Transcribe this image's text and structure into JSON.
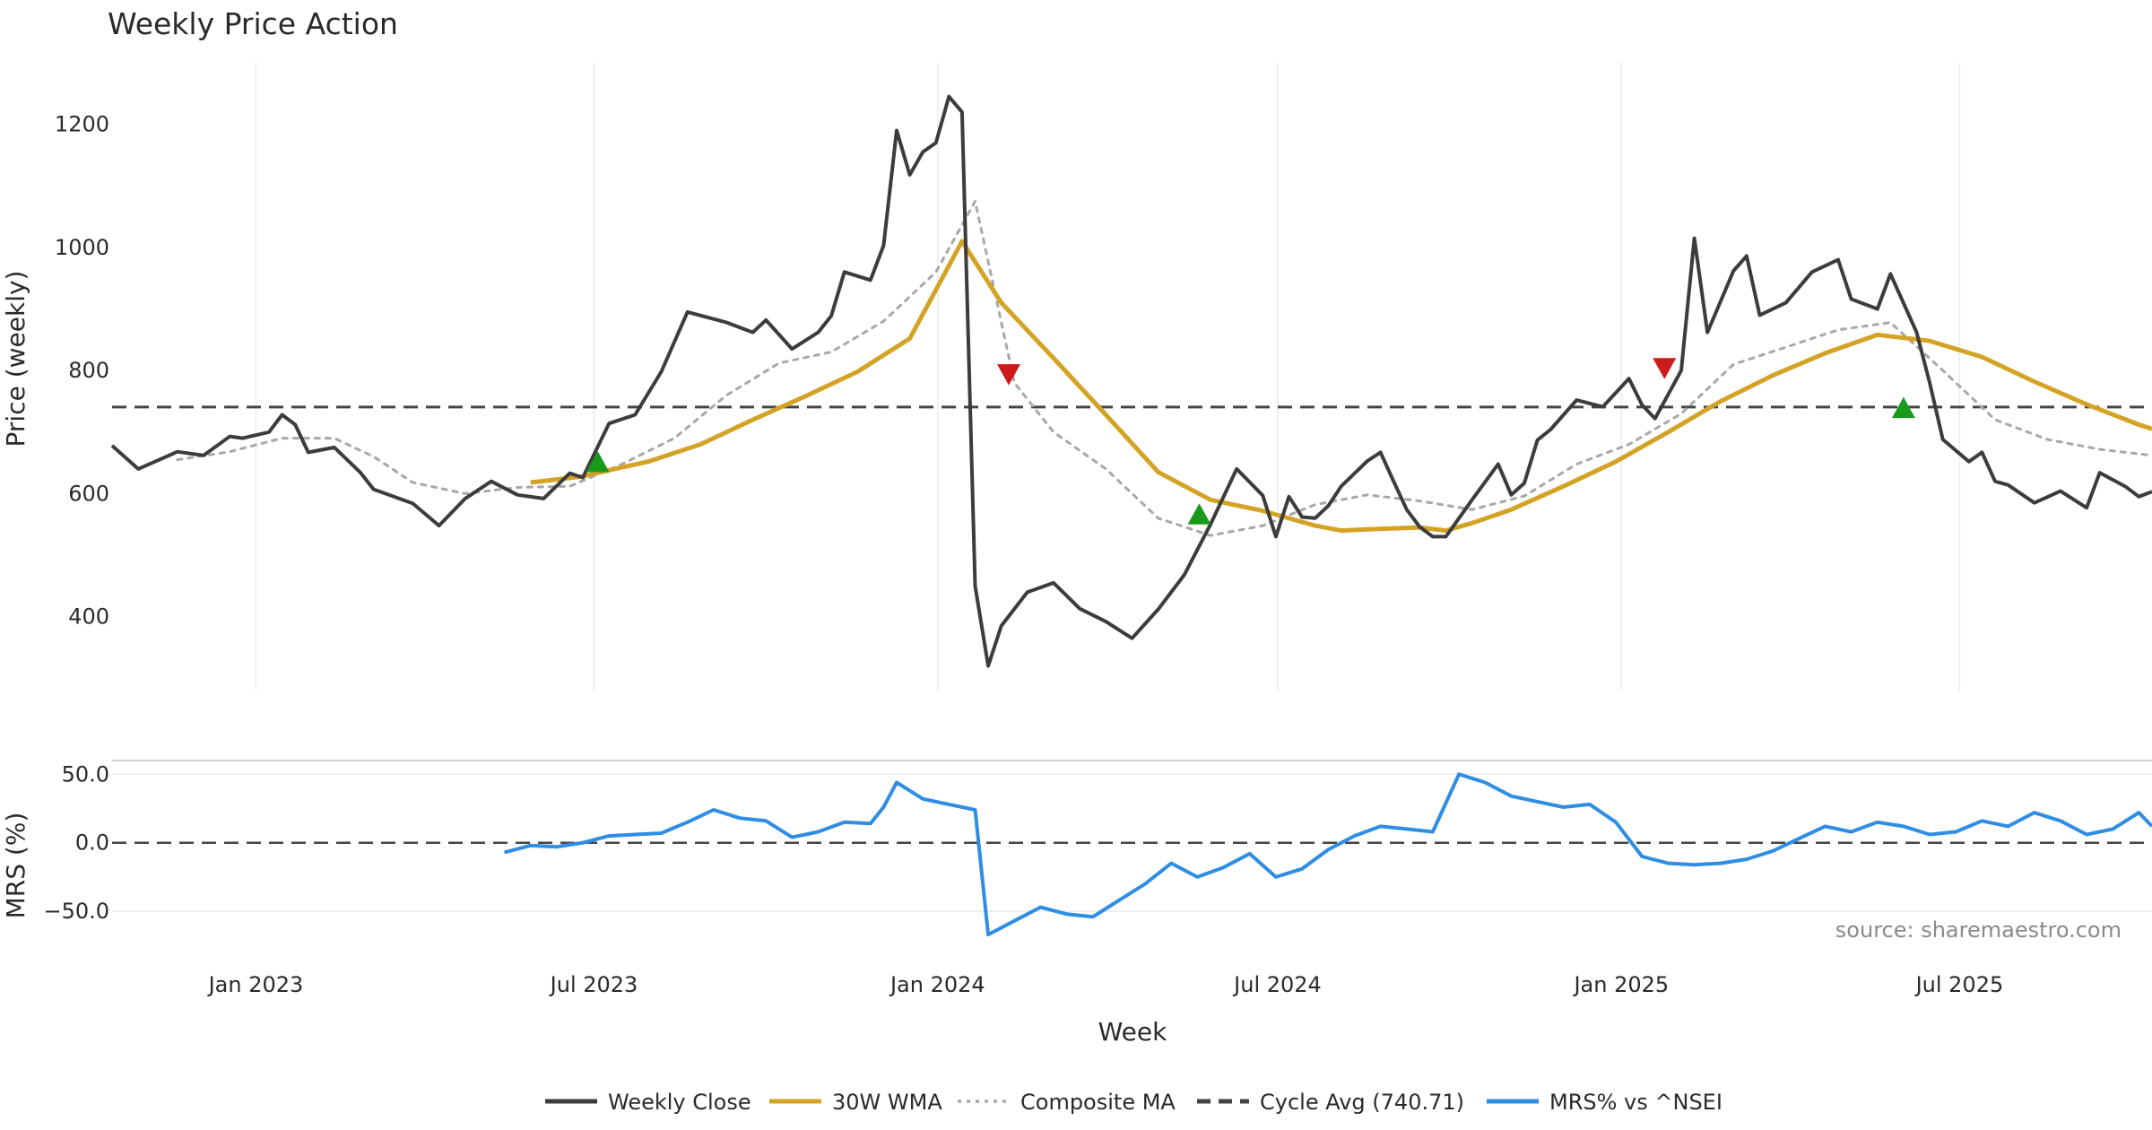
{
  "chart_data": {
    "type": "line",
    "title": "Weekly Price Action",
    "xlabel": "Week",
    "source": "source: sharemaestro.com",
    "x_ticks": [
      "Jan 2023",
      "Jul 2023",
      "Jan 2024",
      "Jul 2024",
      "Jan 2025",
      "Jul 2025"
    ],
    "x_tick_dates": [
      "2023-01-01",
      "2023-07-01",
      "2024-01-01",
      "2024-07-01",
      "2025-01-01",
      "2025-07-01"
    ],
    "x_range": [
      "2022-10-16",
      "2025-10-12"
    ],
    "grid": "vertical lines at x ticks, horizontal lines at MRS ticks",
    "legend_position": "bottom-center",
    "panels": [
      {
        "name": "price",
        "ylabel": "Price (weekly)",
        "y_ticks": [
          400,
          600,
          800,
          1000,
          1200
        ],
        "ylim": [
          280,
          1300
        ]
      },
      {
        "name": "mrs",
        "ylabel": "MRS (%)",
        "y_ticks": [
          "50.0",
          "0.0",
          "−50.0"
        ],
        "y_tick_values": [
          50,
          0,
          -50
        ],
        "ylim": [
          -80,
          60
        ]
      }
    ],
    "series": [
      {
        "name": "Weekly Close",
        "color": "#3c3c3c",
        "style": "solid",
        "panel": "price",
        "points": [
          [
            "2022-10-16",
            678
          ],
          [
            "2022-10-30",
            640
          ],
          [
            "2022-11-20",
            668
          ],
          [
            "2022-12-04",
            662
          ],
          [
            "2022-12-18",
            693
          ],
          [
            "2022-12-25",
            690
          ],
          [
            "2023-01-08",
            700
          ],
          [
            "2023-01-15",
            728
          ],
          [
            "2023-01-22",
            712
          ],
          [
            "2023-01-29",
            667
          ],
          [
            "2023-02-12",
            675
          ],
          [
            "2023-02-26",
            634
          ],
          [
            "2023-03-05",
            607
          ],
          [
            "2023-03-26",
            584
          ],
          [
            "2023-04-09",
            548
          ],
          [
            "2023-04-23",
            592
          ],
          [
            "2023-05-07",
            620
          ],
          [
            "2023-05-21",
            598
          ],
          [
            "2023-06-04",
            592
          ],
          [
            "2023-06-18",
            633
          ],
          [
            "2023-06-25",
            626
          ],
          [
            "2023-07-09",
            714
          ],
          [
            "2023-07-23",
            728
          ],
          [
            "2023-08-06",
            798
          ],
          [
            "2023-08-20",
            895
          ],
          [
            "2023-09-10",
            878
          ],
          [
            "2023-09-24",
            862
          ],
          [
            "2023-10-01",
            882
          ],
          [
            "2023-10-15",
            835
          ],
          [
            "2023-10-29",
            862
          ],
          [
            "2023-11-05",
            889
          ],
          [
            "2023-11-12",
            960
          ],
          [
            "2023-11-26",
            947
          ],
          [
            "2023-12-03",
            1003
          ],
          [
            "2023-12-10",
            1190
          ],
          [
            "2023-12-17",
            1118
          ],
          [
            "2023-12-24",
            1155
          ],
          [
            "2023-12-31",
            1170
          ],
          [
            "2024-01-07",
            1245
          ],
          [
            "2024-01-14",
            1220
          ],
          [
            "2024-01-21",
            450
          ],
          [
            "2024-01-28",
            320
          ],
          [
            "2024-02-04",
            385
          ],
          [
            "2024-02-18",
            440
          ],
          [
            "2024-03-03",
            455
          ],
          [
            "2024-03-17",
            413
          ],
          [
            "2024-03-31",
            392
          ],
          [
            "2024-04-14",
            365
          ],
          [
            "2024-04-28",
            412
          ],
          [
            "2024-05-12",
            468
          ],
          [
            "2024-05-26",
            550
          ],
          [
            "2024-06-09",
            640
          ],
          [
            "2024-06-23",
            597
          ],
          [
            "2024-06-30",
            530
          ],
          [
            "2024-07-07",
            595
          ],
          [
            "2024-07-14",
            562
          ],
          [
            "2024-07-21",
            560
          ],
          [
            "2024-07-28",
            580
          ],
          [
            "2024-08-04",
            612
          ],
          [
            "2024-08-18",
            653
          ],
          [
            "2024-08-25",
            667
          ],
          [
            "2024-09-01",
            620
          ],
          [
            "2024-09-08",
            574
          ],
          [
            "2024-09-15",
            546
          ],
          [
            "2024-09-22",
            530
          ],
          [
            "2024-09-29",
            530
          ],
          [
            "2024-10-13",
            590
          ],
          [
            "2024-10-27",
            648
          ],
          [
            "2024-11-03",
            598
          ],
          [
            "2024-11-10",
            617
          ],
          [
            "2024-11-17",
            687
          ],
          [
            "2024-11-24",
            704
          ],
          [
            "2024-12-08",
            752
          ],
          [
            "2024-12-22",
            741
          ],
          [
            "2025-01-05",
            787
          ],
          [
            "2025-01-12",
            744
          ],
          [
            "2025-01-19",
            722
          ],
          [
            "2025-02-02",
            800
          ],
          [
            "2025-02-09",
            1015
          ],
          [
            "2025-02-16",
            862
          ],
          [
            "2025-03-02",
            962
          ],
          [
            "2025-03-09",
            986
          ],
          [
            "2025-03-16",
            890
          ],
          [
            "2025-03-30",
            910
          ],
          [
            "2025-04-13",
            960
          ],
          [
            "2025-04-27",
            980
          ],
          [
            "2025-05-04",
            916
          ],
          [
            "2025-05-18",
            900
          ],
          [
            "2025-05-25",
            957
          ],
          [
            "2025-06-08",
            862
          ],
          [
            "2025-06-15",
            780
          ],
          [
            "2025-06-22",
            688
          ],
          [
            "2025-07-06",
            652
          ],
          [
            "2025-07-13",
            667
          ],
          [
            "2025-07-20",
            620
          ],
          [
            "2025-07-27",
            614
          ],
          [
            "2025-08-10",
            585
          ],
          [
            "2025-08-24",
            604
          ],
          [
            "2025-09-07",
            577
          ],
          [
            "2025-09-14",
            634
          ],
          [
            "2025-09-28",
            611
          ],
          [
            "2025-10-05",
            595
          ],
          [
            "2025-10-12",
            603
          ]
        ]
      },
      {
        "name": "30W WMA",
        "color": "#d4a325",
        "style": "solid",
        "panel": "price",
        "points": [
          [
            "2023-05-28",
            618
          ],
          [
            "2023-06-25",
            628
          ],
          [
            "2023-07-09",
            638
          ],
          [
            "2023-07-30",
            652
          ],
          [
            "2023-08-27",
            680
          ],
          [
            "2023-09-24",
            720
          ],
          [
            "2023-10-22",
            758
          ],
          [
            "2023-11-19",
            798
          ],
          [
            "2023-12-17",
            852
          ],
          [
            "2024-01-14",
            1010
          ],
          [
            "2024-02-04",
            910
          ],
          [
            "2024-03-03",
            820
          ],
          [
            "2024-03-31",
            728
          ],
          [
            "2024-04-28",
            635
          ],
          [
            "2024-05-26",
            590
          ],
          [
            "2024-06-23",
            572
          ],
          [
            "2024-07-21",
            548
          ],
          [
            "2024-08-04",
            540
          ],
          [
            "2024-08-18",
            542
          ],
          [
            "2024-09-15",
            545
          ],
          [
            "2024-09-29",
            540
          ],
          [
            "2024-10-13",
            552
          ],
          [
            "2024-11-03",
            574
          ],
          [
            "2024-12-01",
            612
          ],
          [
            "2024-12-29",
            652
          ],
          [
            "2025-01-26",
            700
          ],
          [
            "2025-02-23",
            750
          ],
          [
            "2025-03-23",
            792
          ],
          [
            "2025-04-20",
            828
          ],
          [
            "2025-05-18",
            858
          ],
          [
            "2025-06-15",
            848
          ],
          [
            "2025-07-13",
            822
          ],
          [
            "2025-08-10",
            782
          ],
          [
            "2025-09-07",
            745
          ],
          [
            "2025-10-05",
            712
          ],
          [
            "2025-10-12",
            705
          ]
        ]
      },
      {
        "name": "Composite MA",
        "color": "#a8a8a8",
        "style": "dotted",
        "panel": "price",
        "points": [
          [
            "2022-11-20",
            655
          ],
          [
            "2022-12-18",
            668
          ],
          [
            "2023-01-15",
            690
          ],
          [
            "2023-02-12",
            690
          ],
          [
            "2023-03-05",
            660
          ],
          [
            "2023-03-26",
            618
          ],
          [
            "2023-04-23",
            600
          ],
          [
            "2023-05-21",
            610
          ],
          [
            "2023-06-18",
            612
          ],
          [
            "2023-07-16",
            648
          ],
          [
            "2023-08-13",
            690
          ],
          [
            "2023-09-10",
            760
          ],
          [
            "2023-10-08",
            812
          ],
          [
            "2023-11-05",
            830
          ],
          [
            "2023-12-03",
            880
          ],
          [
            "2023-12-31",
            960
          ],
          [
            "2024-01-21",
            1075
          ],
          [
            "2024-02-11",
            780
          ],
          [
            "2024-03-03",
            700
          ],
          [
            "2024-03-31",
            640
          ],
          [
            "2024-04-28",
            560
          ],
          [
            "2024-05-26",
            532
          ],
          [
            "2024-06-23",
            548
          ],
          [
            "2024-07-21",
            582
          ],
          [
            "2024-08-18",
            598
          ],
          [
            "2024-09-15",
            588
          ],
          [
            "2024-10-13",
            574
          ],
          [
            "2024-11-10",
            596
          ],
          [
            "2024-12-08",
            648
          ],
          [
            "2025-01-05",
            680
          ],
          [
            "2025-02-02",
            730
          ],
          [
            "2025-03-02",
            810
          ],
          [
            "2025-03-30",
            838
          ],
          [
            "2025-04-27",
            866
          ],
          [
            "2025-05-25",
            878
          ],
          [
            "2025-06-22",
            800
          ],
          [
            "2025-07-20",
            720
          ],
          [
            "2025-08-17",
            688
          ],
          [
            "2025-09-14",
            672
          ],
          [
            "2025-10-12",
            662
          ]
        ]
      },
      {
        "name": "Cycle Avg (740.71)",
        "color": "#444444",
        "style": "dashed",
        "panel": "price",
        "value": 740.71
      },
      {
        "name": "MRS% vs ^NSEI",
        "color": "#2f8de4",
        "style": "solid",
        "panel": "mrs",
        "points": [
          [
            "2023-05-14",
            -7
          ],
          [
            "2023-05-28",
            -2
          ],
          [
            "2023-06-11",
            -3
          ],
          [
            "2023-06-25",
            0
          ],
          [
            "2023-07-09",
            5
          ],
          [
            "2023-07-23",
            6
          ],
          [
            "2023-08-06",
            7
          ],
          [
            "2023-08-20",
            15
          ],
          [
            "2023-09-03",
            24
          ],
          [
            "2023-09-17",
            18
          ],
          [
            "2023-10-01",
            16
          ],
          [
            "2023-10-15",
            4
          ],
          [
            "2023-10-29",
            8
          ],
          [
            "2023-11-12",
            15
          ],
          [
            "2023-11-26",
            14
          ],
          [
            "2023-12-03",
            26
          ],
          [
            "2023-12-10",
            44
          ],
          [
            "2023-12-24",
            32
          ],
          [
            "2024-01-07",
            28
          ],
          [
            "2024-01-21",
            24
          ],
          [
            "2024-01-28",
            -67
          ],
          [
            "2024-02-11",
            -57
          ],
          [
            "2024-02-25",
            -47
          ],
          [
            "2024-03-10",
            -52
          ],
          [
            "2024-03-24",
            -54
          ],
          [
            "2024-04-07",
            -42
          ],
          [
            "2024-04-21",
            -30
          ],
          [
            "2024-05-05",
            -15
          ],
          [
            "2024-05-19",
            -25
          ],
          [
            "2024-06-02",
            -18
          ],
          [
            "2024-06-16",
            -8
          ],
          [
            "2024-06-30",
            -25
          ],
          [
            "2024-07-14",
            -19
          ],
          [
            "2024-07-28",
            -5
          ],
          [
            "2024-08-11",
            5
          ],
          [
            "2024-08-25",
            12
          ],
          [
            "2024-09-08",
            10
          ],
          [
            "2024-09-22",
            8
          ],
          [
            "2024-10-06",
            50
          ],
          [
            "2024-10-20",
            44
          ],
          [
            "2024-11-03",
            34
          ],
          [
            "2024-11-17",
            30
          ],
          [
            "2024-12-01",
            26
          ],
          [
            "2024-12-15",
            28
          ],
          [
            "2024-12-29",
            15
          ],
          [
            "2025-01-12",
            -10
          ],
          [
            "2025-01-26",
            -15
          ],
          [
            "2025-02-09",
            -16
          ],
          [
            "2025-02-23",
            -15
          ],
          [
            "2025-03-09",
            -12
          ],
          [
            "2025-03-23",
            -6
          ],
          [
            "2025-04-06",
            3
          ],
          [
            "2025-04-20",
            12
          ],
          [
            "2025-05-04",
            8
          ],
          [
            "2025-05-18",
            15
          ],
          [
            "2025-06-01",
            12
          ],
          [
            "2025-06-15",
            6
          ],
          [
            "2025-06-29",
            8
          ],
          [
            "2025-07-13",
            16
          ],
          [
            "2025-07-27",
            12
          ],
          [
            "2025-08-10",
            22
          ],
          [
            "2025-08-24",
            16
          ],
          [
            "2025-09-07",
            6
          ],
          [
            "2025-09-21",
            10
          ],
          [
            "2025-10-05",
            22
          ],
          [
            "2025-10-12",
            12
          ]
        ]
      }
    ],
    "markers": [
      {
        "kind": "buy",
        "color": "#1a9a1a",
        "x": "2023-07-03",
        "y": 650
      },
      {
        "kind": "sell",
        "color": "#cc1b1b",
        "x": "2024-02-08",
        "y": 795
      },
      {
        "kind": "buy",
        "color": "#1a9a1a",
        "x": "2024-05-20",
        "y": 565
      },
      {
        "kind": "sell",
        "color": "#cc1b1b",
        "x": "2025-01-24",
        "y": 805
      },
      {
        "kind": "buy",
        "color": "#1a9a1a",
        "x": "2025-06-01",
        "y": 738
      }
    ],
    "legend": [
      {
        "label": "Weekly Close",
        "color": "#3c3c3c",
        "style": "solid"
      },
      {
        "label": "30W WMA",
        "color": "#d4a325",
        "style": "solid"
      },
      {
        "label": "Composite MA",
        "color": "#a8a8a8",
        "style": "dotted"
      },
      {
        "label": "Cycle Avg (740.71)",
        "color": "#444444",
        "style": "dashed"
      },
      {
        "label": "MRS% vs ^NSEI",
        "color": "#2f8de4",
        "style": "solid"
      }
    ]
  }
}
